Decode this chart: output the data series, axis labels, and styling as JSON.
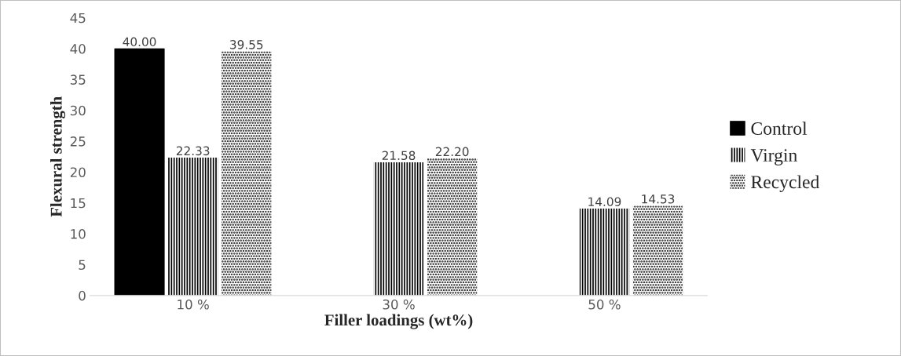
{
  "chart_data": {
    "type": "bar",
    "xlabel": "Filler loadings (wt%)",
    "ylabel": "Flexural strength",
    "categories": [
      "10 %",
      "30 %",
      "50 %"
    ],
    "series": [
      {
        "name": "Control",
        "color": "#000000",
        "values": [
          40.0,
          null,
          null
        ],
        "value_labels": [
          "40.00",
          null,
          null
        ]
      },
      {
        "name": "Virgin",
        "color": "#000000",
        "values": [
          22.33,
          21.58,
          14.09
        ],
        "value_labels": [
          "22.33",
          "21.58",
          "14.09"
        ]
      },
      {
        "name": "Recycled",
        "color": "#000000",
        "values": [
          39.55,
          22.2,
          14.53
        ],
        "value_labels": [
          "39.55",
          "22.20",
          "14.53"
        ]
      }
    ],
    "ylim": [
      0,
      45
    ],
    "yticks": [
      0,
      5,
      10,
      15,
      20,
      25,
      30,
      35,
      40,
      45
    ],
    "grid": false,
    "legend": "right"
  }
}
